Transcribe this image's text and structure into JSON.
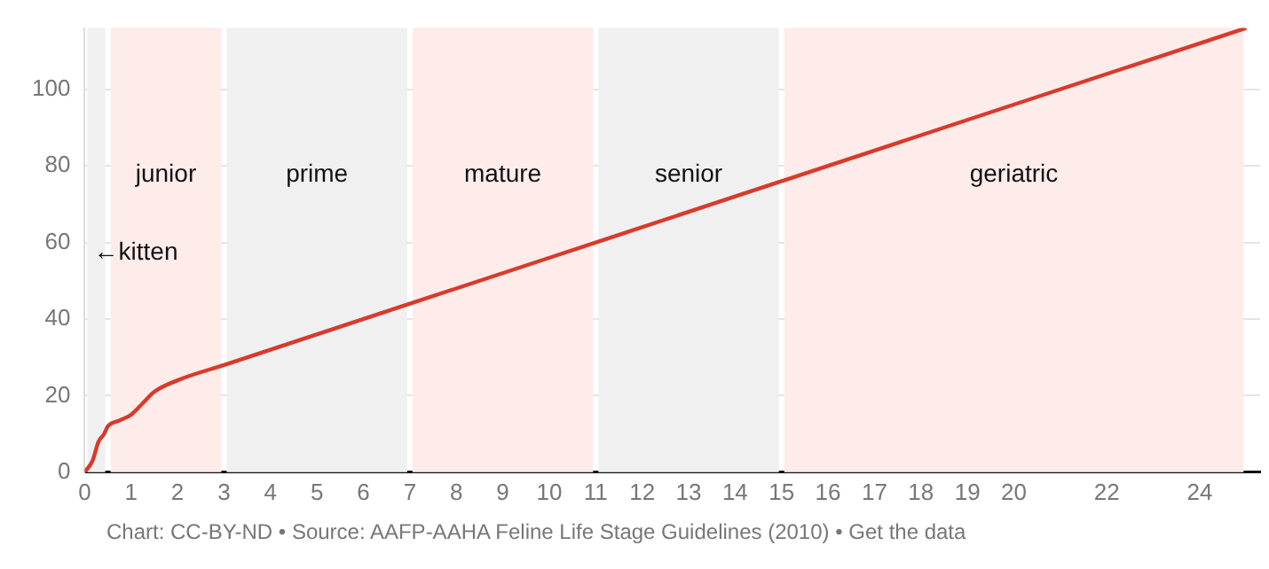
{
  "chart_data": {
    "type": "line",
    "x": [
      0,
      0.17,
      0.3,
      0.42,
      0.5,
      0.75,
      1,
      1.25,
      1.5,
      2,
      3,
      7,
      11,
      15,
      20,
      25
    ],
    "series": [
      {
        "color": "#d93a2b",
        "values": [
          0,
          3,
          8,
          10,
          12,
          13.5,
          15,
          18,
          21,
          24,
          28,
          44,
          60,
          76,
          96,
          116
        ]
      }
    ],
    "xlim": [
      0,
      25.3
    ],
    "xticks": [
      0,
      1,
      2,
      3,
      4,
      5,
      6,
      7,
      8,
      9,
      10,
      11,
      12,
      13,
      14,
      15,
      16,
      17,
      18,
      19,
      20,
      22,
      24
    ],
    "ylim": [
      0,
      116
    ],
    "yticks": [
      0,
      20,
      40,
      60,
      80,
      100
    ],
    "grid": "y",
    "legend": false,
    "marker": "none",
    "line_style": "solid",
    "bands": [
      {
        "axis": "x",
        "from": 0,
        "to": 0.5,
        "label": "←kitten",
        "color": "#f0f0f0"
      },
      {
        "axis": "x",
        "from": 0.5,
        "to": 3,
        "label": "junior",
        "color": "#fdecea"
      },
      {
        "axis": "x",
        "from": 3,
        "to": 7,
        "label": "prime",
        "color": "#f0f0f0"
      },
      {
        "axis": "x",
        "from": 7,
        "to": 11,
        "label": "mature",
        "color": "#fdecea"
      },
      {
        "axis": "x",
        "from": 11,
        "to": 15,
        "label": "senior",
        "color": "#f0f0f0"
      },
      {
        "axis": "x",
        "from": 15,
        "to": 25,
        "label": "geriatric",
        "color": "#fdecea"
      }
    ],
    "annotations": [
      "Chart: CC-BY-ND • Source: AAFP-AAHA Feline Life Stage Guidelines (2010) • Get the data"
    ]
  }
}
